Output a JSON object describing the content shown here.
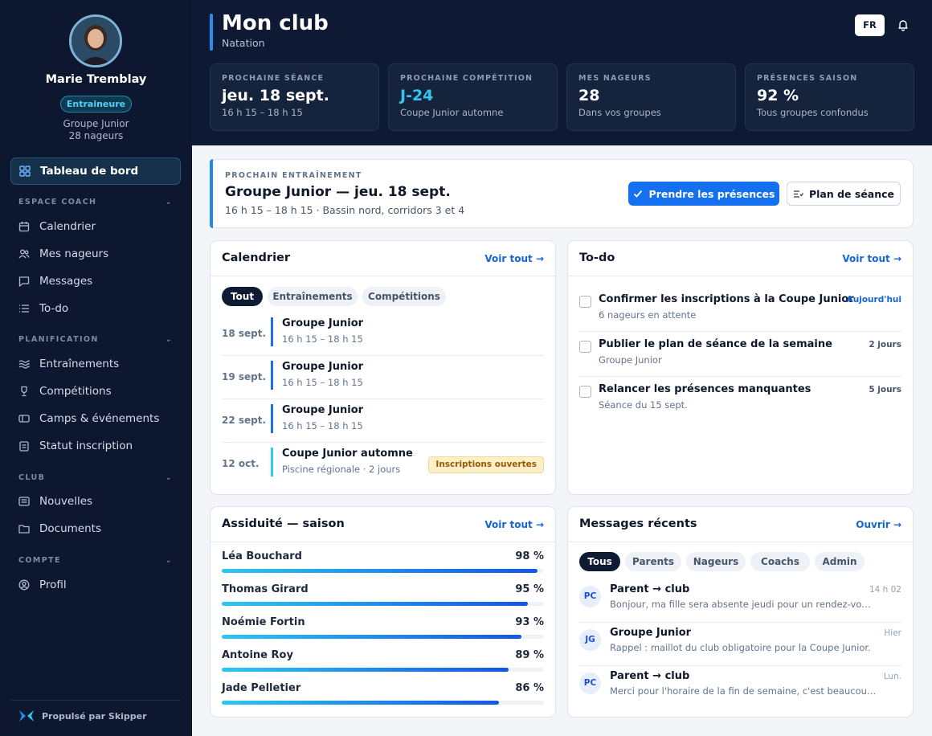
{
  "profile": {
    "name": "Marie Tremblay",
    "role": "Entraineure",
    "group": "Groupe Junior",
    "swimmers": "28 nageurs"
  },
  "nav": {
    "dashboard": "Tableau de bord",
    "sections": [
      {
        "label": "ESPACE COACH",
        "items": [
          "Calendrier",
          "Mes nageurs",
          "Messages",
          "To-do"
        ]
      },
      {
        "label": "PLANIFICATION",
        "items": [
          "Entraînements",
          "Compétitions",
          "Camps & événements",
          "Statut inscription"
        ]
      },
      {
        "label": "CLUB",
        "items": [
          "Nouvelles",
          "Documents"
        ]
      },
      {
        "label": "COMPTE",
        "items": [
          "Profil"
        ]
      }
    ],
    "powered_by": "Propulsé par Skipper"
  },
  "header": {
    "title": "Mon club",
    "subtitle": "Natation",
    "lang": "FR"
  },
  "stats": [
    {
      "label": "PROCHAINE SÉANCE",
      "value": "jeu. 18 sept.",
      "hint": "16 h 15 – 18 h 15"
    },
    {
      "label": "PROCHAINE COMPÉTITION",
      "value": "J-24",
      "hint": "Coupe Junior automne"
    },
    {
      "label": "MES NAGEURS",
      "value": "28",
      "hint": "Dans vos groupes"
    },
    {
      "label": "PRÉSENCES SAISON",
      "value": "92 %",
      "hint": "Tous groupes confondus"
    }
  ],
  "next_training": {
    "label": "PROCHAIN ENTRAÎNEMENT",
    "title": "Groupe Junior — jeu. 18 sept.",
    "detail": "16 h 15 – 18 h 15 · Bassin nord, corridors 3 et 4",
    "primary_action": "Prendre les présences",
    "secondary_action": "Plan de séance"
  },
  "calendar": {
    "title": "Calendrier",
    "link": "Voir tout →",
    "filters": [
      "Tout",
      "Entraînements",
      "Compétitions"
    ],
    "events": [
      {
        "date": "18 sept.",
        "title": "Groupe Junior",
        "time": "16 h 15 – 18 h 15",
        "badge": ""
      },
      {
        "date": "19 sept.",
        "title": "Groupe Junior",
        "time": "16 h 15 – 18 h 15",
        "badge": ""
      },
      {
        "date": "22 sept.",
        "title": "Groupe Junior",
        "time": "16 h 15 – 18 h 15",
        "badge": ""
      },
      {
        "date": "12 oct.",
        "title": "Coupe Junior automne",
        "time": "Piscine régionale · 2 jours",
        "badge": "Inscriptions ouvertes"
      }
    ]
  },
  "todo": {
    "title": "To-do",
    "link": "Voir tout →",
    "items": [
      {
        "title": "Confirmer les inscriptions à la Coupe Junior",
        "sub": "6 nageurs en attente",
        "due": "Aujourd'hui"
      },
      {
        "title": "Publier le plan de séance de la semaine",
        "sub": "Groupe Junior",
        "due": "2 jours"
      },
      {
        "title": "Relancer les présences manquantes",
        "sub": "Séance du 15 sept.",
        "due": "5 jours"
      }
    ]
  },
  "attendance": {
    "title": "Assiduité — saison",
    "link": "Voir tout →",
    "rows": [
      {
        "name": "Léa Bouchard",
        "pct": "98 %",
        "value": 0.98
      },
      {
        "name": "Thomas Girard",
        "pct": "95 %",
        "value": 0.95
      },
      {
        "name": "Noémie Fortin",
        "pct": "93 %",
        "value": 0.93
      },
      {
        "name": "Antoine Roy",
        "pct": "89 %",
        "value": 0.89
      },
      {
        "name": "Jade Pelletier",
        "pct": "86 %",
        "value": 0.86
      }
    ]
  },
  "messages": {
    "title": "Messages récents",
    "link": "Ouvrir →",
    "filters": [
      "Tous",
      "Parents",
      "Nageurs",
      "Coachs",
      "Admin"
    ],
    "items": [
      {
        "initials": "PC",
        "from": "Parent → club",
        "text": "Bonjour, ma fille sera absente jeudi pour un rendez-vous…",
        "time": "14 h 02"
      },
      {
        "initials": "JG",
        "from": "Groupe Junior",
        "text": "Rappel : maillot du club obligatoire pour la Coupe Junior.",
        "time": "Hier"
      },
      {
        "initials": "PC",
        "from": "Parent → club",
        "text": "Merci pour l'horaire de la fin de semaine, c'est beaucoup p…",
        "time": "Lun."
      }
    ]
  }
}
